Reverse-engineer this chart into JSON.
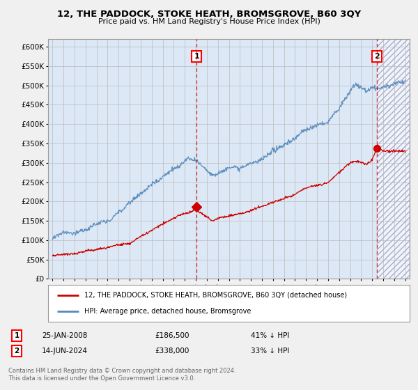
{
  "title": "12, THE PADDOCK, STOKE HEATH, BROMSGROVE, B60 3QY",
  "subtitle": "Price paid vs. HM Land Registry's House Price Index (HPI)",
  "legend_label_red": "12, THE PADDOCK, STOKE HEATH, BROMSGROVE, B60 3QY (detached house)",
  "legend_label_blue": "HPI: Average price, detached house, Bromsgrove",
  "annotation1_label": "1",
  "annotation1_date": "25-JAN-2008",
  "annotation1_price": "£186,500",
  "annotation1_hpi": "41% ↓ HPI",
  "annotation2_label": "2",
  "annotation2_date": "14-JUN-2024",
  "annotation2_price": "£338,000",
  "annotation2_hpi": "33% ↓ HPI",
  "footer": "Contains HM Land Registry data © Crown copyright and database right 2024.\nThis data is licensed under the Open Government Licence v3.0.",
  "yticks": [
    0,
    50000,
    100000,
    150000,
    200000,
    250000,
    300000,
    350000,
    400000,
    450000,
    500000,
    550000,
    600000
  ],
  "ytick_labels": [
    "£0",
    "£50K",
    "£100K",
    "£150K",
    "£200K",
    "£250K",
    "£300K",
    "£350K",
    "£400K",
    "£450K",
    "£500K",
    "£550K",
    "£600K"
  ],
  "purchase1_year": 2008.07,
  "purchase1_value": 186500,
  "purchase2_year": 2024.45,
  "purchase2_value": 338000,
  "bg_color": "#f0f0f0",
  "plot_bg_color": "#dce8f5",
  "hatch_bg_color": "#d0d8e8",
  "red_color": "#cc0000",
  "blue_color": "#5588bb",
  "grid_color": "#bbbbbb",
  "xlim_left": 1994.6,
  "xlim_right": 2027.4,
  "ylim_top": 620000,
  "xtick_years": [
    1995,
    1996,
    1997,
    1998,
    1999,
    2000,
    2001,
    2002,
    2003,
    2004,
    2005,
    2006,
    2007,
    2008,
    2009,
    2010,
    2011,
    2012,
    2013,
    2014,
    2015,
    2016,
    2017,
    2018,
    2019,
    2020,
    2021,
    2022,
    2023,
    2024,
    2025,
    2026,
    2027
  ]
}
